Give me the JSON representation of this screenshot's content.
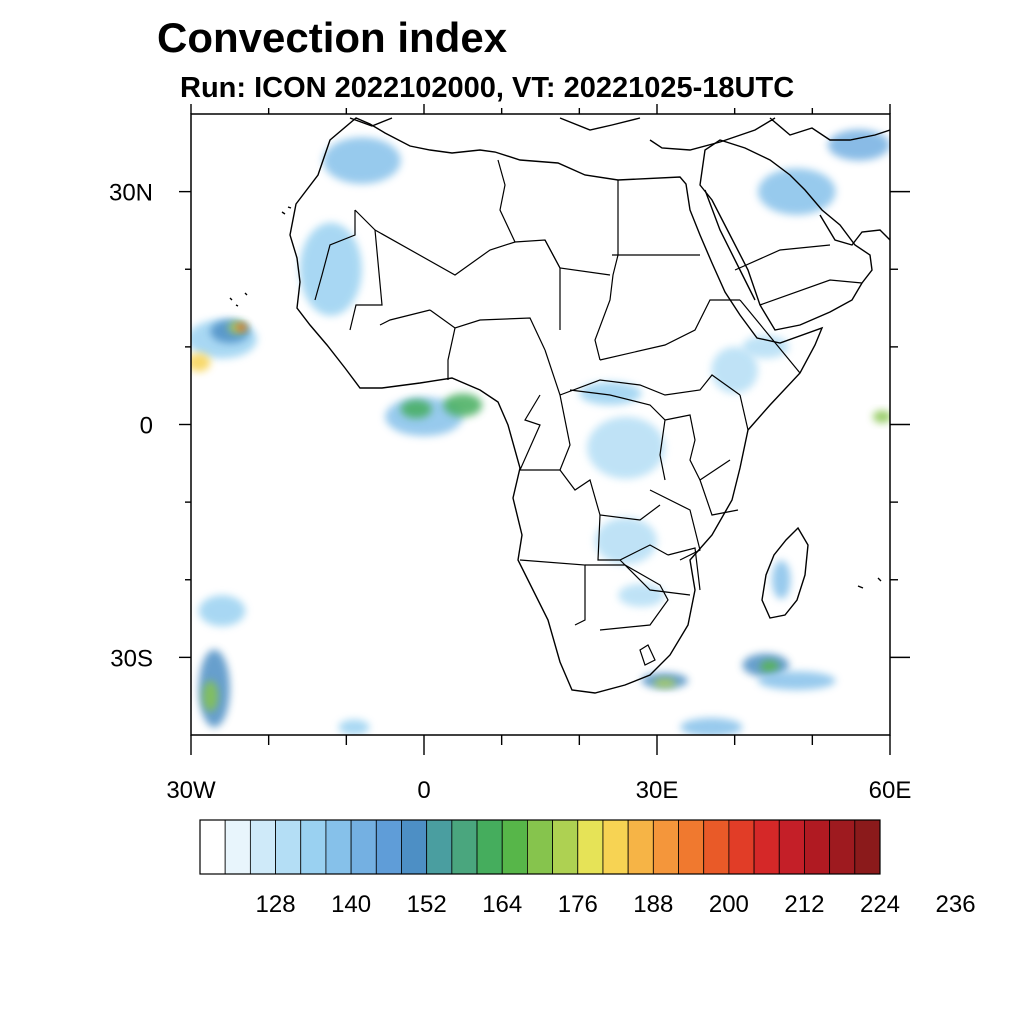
{
  "title": "Convection index",
  "subtitle": "Run: ICON 2022102000,  VT: 20221025-18UTC",
  "map": {
    "region": "Africa",
    "lon_range": [
      -30,
      60
    ],
    "lat_range": [
      -40,
      40
    ],
    "lat_ticks": [
      {
        "value": 30,
        "label": "30N"
      },
      {
        "value": 0,
        "label": "0"
      },
      {
        "value": -30,
        "label": "30S"
      }
    ],
    "lon_ticks": [
      {
        "value": -30,
        "label": "30W"
      },
      {
        "value": 0,
        "label": "0"
      },
      {
        "value": 30,
        "label": "30E"
      },
      {
        "value": 60,
        "label": "60E"
      }
    ],
    "minor_lon_ticks": [
      -20,
      -10,
      10,
      20,
      40,
      50
    ],
    "minor_lat_ticks": [
      20,
      10,
      -10,
      -20
    ]
  },
  "colorbar": {
    "colors": [
      "#ffffff",
      "#e8f5fc",
      "#cfeaf9",
      "#b4def5",
      "#9ad1f1",
      "#86c1ea",
      "#74b0e2",
      "#5f9dd8",
      "#4d8fc5",
      "#4a9ea0",
      "#4aa67e",
      "#45ad5d",
      "#57b649",
      "#86c44d",
      "#aed152",
      "#e6e357",
      "#f7d353",
      "#f6b446",
      "#f4963b",
      "#f0792f",
      "#e95a28",
      "#e13d27",
      "#d52828",
      "#c41f28",
      "#b01a22",
      "#9e1a1f",
      "#8b1a1b"
    ],
    "labels": [
      "128",
      "140",
      "152",
      "164",
      "176",
      "188",
      "200",
      "212",
      "224",
      "236"
    ]
  },
  "convection_cells": [
    {
      "lon": -26,
      "lat": 11,
      "rx": 4.5,
      "ry": 2.5,
      "level": 2
    },
    {
      "lon": -25,
      "lat": 12,
      "rx": 2.5,
      "ry": 1.5,
      "level": 6
    },
    {
      "lon": -24,
      "lat": 12.5,
      "rx": 1.2,
      "ry": 0.8,
      "level": 12
    },
    {
      "lon": -23.5,
      "lat": 12.5,
      "rx": 0.7,
      "ry": 0.5,
      "level": 18
    },
    {
      "lon": -29,
      "lat": 8,
      "rx": 1.5,
      "ry": 1.2,
      "level": 14
    },
    {
      "lon": 0,
      "lat": 1,
      "rx": 5,
      "ry": 2.5,
      "level": 3
    },
    {
      "lon": -1,
      "lat": 2,
      "rx": 2,
      "ry": 1.2,
      "level": 9
    },
    {
      "lon": 5,
      "lat": 2.5,
      "rx": 2.5,
      "ry": 1.5,
      "level": 9
    },
    {
      "lon": 26,
      "lat": -3,
      "rx": 5,
      "ry": 4,
      "level": 1
    },
    {
      "lon": 40,
      "lat": 7,
      "rx": 3,
      "ry": 3,
      "level": 1
    },
    {
      "lon": 24,
      "lat": 4,
      "rx": 4,
      "ry": 1.5,
      "level": 2
    },
    {
      "lon": 28,
      "lat": -22,
      "rx": 3,
      "ry": 1.5,
      "level": 1
    },
    {
      "lon": 26,
      "lat": -15,
      "rx": 4,
      "ry": 3,
      "level": 1
    },
    {
      "lon": 44,
      "lat": -31,
      "rx": 3,
      "ry": 1.5,
      "level": 6
    },
    {
      "lon": 44.5,
      "lat": -31.2,
      "rx": 1.2,
      "ry": 0.8,
      "level": 10
    },
    {
      "lon": 48,
      "lat": -33,
      "rx": 5,
      "ry": 1.2,
      "level": 3
    },
    {
      "lon": 31,
      "lat": -33,
      "rx": 3,
      "ry": 1,
      "level": 6
    },
    {
      "lon": 31,
      "lat": -33.3,
      "rx": 1.5,
      "ry": 0.6,
      "level": 12
    },
    {
      "lon": 46,
      "lat": -20,
      "rx": 1.2,
      "ry": 2.5,
      "level": 3
    },
    {
      "lon": -27,
      "lat": -34,
      "rx": 2,
      "ry": 5,
      "level": 6
    },
    {
      "lon": -27.5,
      "lat": -35,
      "rx": 1,
      "ry": 2,
      "level": 11
    },
    {
      "lon": -26,
      "lat": -24,
      "rx": 3,
      "ry": 2,
      "level": 2
    },
    {
      "lon": -12,
      "lat": 20,
      "rx": 4,
      "ry": 6,
      "level": 2
    },
    {
      "lon": -8,
      "lat": 34,
      "rx": 5,
      "ry": 3,
      "level": 3
    },
    {
      "lon": 48,
      "lat": 30,
      "rx": 5,
      "ry": 3,
      "level": 3
    },
    {
      "lon": 56,
      "lat": 36,
      "rx": 4,
      "ry": 2,
      "level": 4
    },
    {
      "lon": 59,
      "lat": 1,
      "rx": 1.2,
      "ry": 0.8,
      "level": 11
    },
    {
      "lon": 37,
      "lat": -39,
      "rx": 4,
      "ry": 1.2,
      "level": 3
    },
    {
      "lon": -9,
      "lat": -39,
      "rx": 2,
      "ry": 1,
      "level": 2
    },
    {
      "lon": 44,
      "lat": 10,
      "rx": 3,
      "ry": 1.5,
      "level": 1
    }
  ]
}
